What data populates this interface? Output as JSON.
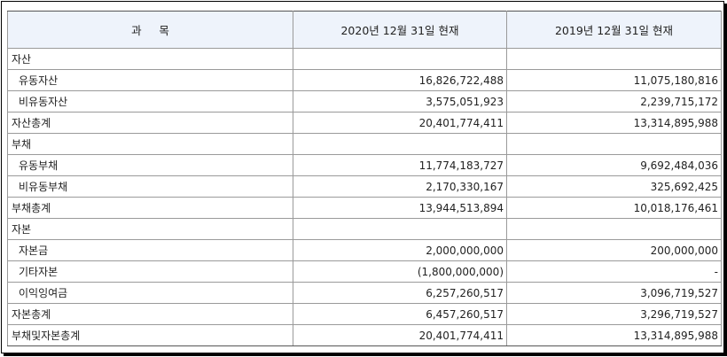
{
  "header": {
    "subject": "과     목",
    "col_2020": "2020년 12월 31일 현재",
    "col_2019": "2019년 12월 31일 현재"
  },
  "rows": [
    {
      "label": "자산",
      "v2020": "",
      "v2019": "",
      "indent": false
    },
    {
      "label": "유동자산",
      "v2020": "16,826,722,488",
      "v2019": "11,075,180,816",
      "indent": true
    },
    {
      "label": "비유동자산",
      "v2020": "3,575,051,923",
      "v2019": "2,239,715,172",
      "indent": true
    },
    {
      "label": "자산총계",
      "v2020": "20,401,774,411",
      "v2019": "13,314,895,988",
      "indent": false
    },
    {
      "label": "부채",
      "v2020": "",
      "v2019": "",
      "indent": false
    },
    {
      "label": "유동부채",
      "v2020": "11,774,183,727",
      "v2019": "9,692,484,036",
      "indent": true
    },
    {
      "label": "비유동부채",
      "v2020": "2,170,330,167",
      "v2019": "325,692,425",
      "indent": true
    },
    {
      "label": "부채총계",
      "v2020": "13,944,513,894",
      "v2019": "10,018,176,461",
      "indent": false
    },
    {
      "label": "자본",
      "v2020": "",
      "v2019": "",
      "indent": false
    },
    {
      "label": "자본금",
      "v2020": "2,000,000,000",
      "v2019": "200,000,000",
      "indent": true
    },
    {
      "label": "기타자본",
      "v2020": "(1,800,000,000)",
      "v2019": "-",
      "indent": true
    },
    {
      "label": "이익잉여금",
      "v2020": "6,257,260,517",
      "v2019": "3,096,719,527",
      "indent": true
    },
    {
      "label": "자본총계",
      "v2020": "6,457,260,517",
      "v2019": "3,296,719,527",
      "indent": false
    },
    {
      "label": "부채및자본총계",
      "v2020": "20,401,774,411",
      "v2019": "13,314,895,988",
      "indent": false
    }
  ]
}
